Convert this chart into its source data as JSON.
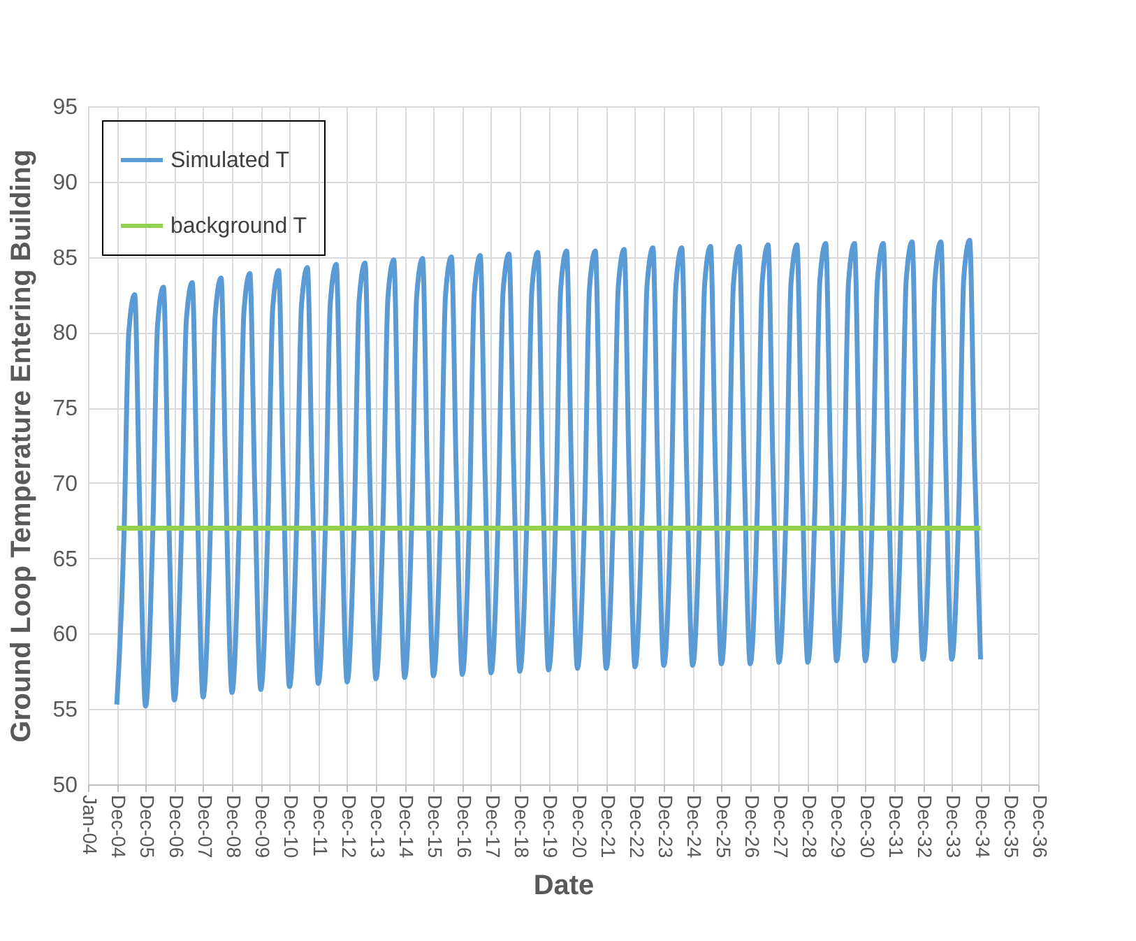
{
  "chart_data": {
    "type": "line",
    "xlabel": "Date",
    "ylabel": "Ground Loop Temperature Entering Building",
    "xlim": [
      "2004-01-01",
      "2036-12-31"
    ],
    "xticks": [
      {
        "value": "2004-01-01",
        "label": "Jan-04"
      },
      {
        "value": "2004-12-31",
        "label": "Dec-04"
      },
      {
        "value": "2005-12-31",
        "label": "Dec-05"
      },
      {
        "value": "2006-12-31",
        "label": "Dec-06"
      },
      {
        "value": "2007-12-31",
        "label": "Dec-07"
      },
      {
        "value": "2008-12-31",
        "label": "Dec-08"
      },
      {
        "value": "2009-12-31",
        "label": "Dec-09"
      },
      {
        "value": "2010-12-31",
        "label": "Dec-10"
      },
      {
        "value": "2011-12-31",
        "label": "Dec-11"
      },
      {
        "value": "2012-12-31",
        "label": "Dec-12"
      },
      {
        "value": "2013-12-31",
        "label": "Dec-13"
      },
      {
        "value": "2014-12-31",
        "label": "Dec-14"
      },
      {
        "value": "2015-12-31",
        "label": "Dec-15"
      },
      {
        "value": "2016-12-31",
        "label": "Dec-16"
      },
      {
        "value": "2017-12-31",
        "label": "Dec-17"
      },
      {
        "value": "2018-12-31",
        "label": "Dec-18"
      },
      {
        "value": "2019-12-31",
        "label": "Dec-19"
      },
      {
        "value": "2020-12-31",
        "label": "Dec-20"
      },
      {
        "value": "2021-12-31",
        "label": "Dec-21"
      },
      {
        "value": "2022-12-31",
        "label": "Dec-22"
      },
      {
        "value": "2023-12-31",
        "label": "Dec-23"
      },
      {
        "value": "2024-12-31",
        "label": "Dec-24"
      },
      {
        "value": "2025-12-31",
        "label": "Dec-25"
      },
      {
        "value": "2026-12-31",
        "label": "Dec-26"
      },
      {
        "value": "2027-12-31",
        "label": "Dec-27"
      },
      {
        "value": "2028-12-31",
        "label": "Dec-28"
      },
      {
        "value": "2029-12-31",
        "label": "Dec-29"
      },
      {
        "value": "2030-12-31",
        "label": "Dec-30"
      },
      {
        "value": "2031-12-31",
        "label": "Dec-31"
      },
      {
        "value": "2032-12-31",
        "label": "Dec-32"
      },
      {
        "value": "2033-12-31",
        "label": "Dec-33"
      },
      {
        "value": "2034-12-31",
        "label": "Dec-34"
      },
      {
        "value": "2035-12-31",
        "label": "Dec-35"
      },
      {
        "value": "2036-12-31",
        "label": "Dec-36"
      }
    ],
    "ylim": [
      50,
      95
    ],
    "yticks": [
      50,
      55,
      60,
      65,
      70,
      75,
      80,
      85,
      90,
      95
    ],
    "grid": true,
    "legend": "top left",
    "marker": "none",
    "line_style": "solid",
    "series": [
      {
        "name": "Simulated T",
        "color": "#5b9bd5",
        "x": [
          "2004-12-31",
          "2005-04-01",
          "2005-06-01",
          "2005-08-15",
          "2005-10-15",
          "2005-12-31",
          "2006-04-01",
          "2006-06-01",
          "2006-08-15",
          "2006-10-15",
          "2006-12-31",
          "2007-04-01",
          "2007-06-01",
          "2007-08-15",
          "2007-10-15",
          "2007-12-31",
          "2008-04-01",
          "2008-06-01",
          "2008-08-15",
          "2008-10-15",
          "2008-12-31",
          "2009-04-01",
          "2009-06-01",
          "2009-08-15",
          "2009-10-15",
          "2009-12-31",
          "2010-04-01",
          "2010-06-01",
          "2010-08-15",
          "2010-10-15",
          "2010-12-31",
          "2011-04-01",
          "2011-06-01",
          "2011-08-15",
          "2011-10-15",
          "2011-12-31",
          "2012-04-01",
          "2012-06-01",
          "2012-08-15",
          "2012-10-15",
          "2012-12-31",
          "2013-04-01",
          "2013-06-01",
          "2013-08-15",
          "2013-10-15",
          "2013-12-31",
          "2014-04-01",
          "2014-06-01",
          "2014-08-15",
          "2014-10-15",
          "2014-12-31",
          "2015-04-01",
          "2015-06-01",
          "2015-08-15",
          "2015-10-15",
          "2015-12-31",
          "2016-04-01",
          "2016-06-01",
          "2016-08-15",
          "2016-10-15",
          "2016-12-31",
          "2017-04-01",
          "2017-06-01",
          "2017-08-15",
          "2017-10-15",
          "2017-12-31",
          "2018-04-01",
          "2018-06-01",
          "2018-08-15",
          "2018-10-15",
          "2018-12-31",
          "2019-04-01",
          "2019-06-01",
          "2019-08-15",
          "2019-10-15",
          "2019-12-31",
          "2020-04-01",
          "2020-06-01",
          "2020-08-15",
          "2020-10-15",
          "2020-12-31",
          "2021-04-01",
          "2021-06-01",
          "2021-08-15",
          "2021-10-15",
          "2021-12-31",
          "2022-04-01",
          "2022-06-01",
          "2022-08-15",
          "2022-10-15",
          "2022-12-31",
          "2023-04-01",
          "2023-06-01",
          "2023-08-15",
          "2023-10-15",
          "2023-12-31",
          "2024-04-01",
          "2024-06-01",
          "2024-08-15",
          "2024-10-15",
          "2024-12-31",
          "2025-04-01",
          "2025-06-01",
          "2025-08-15",
          "2025-10-15",
          "2025-12-31",
          "2026-04-01",
          "2026-06-01",
          "2026-08-15",
          "2026-10-15",
          "2026-12-31",
          "2027-04-01",
          "2027-06-01",
          "2027-08-15",
          "2027-10-15",
          "2027-12-31",
          "2028-04-01",
          "2028-06-01",
          "2028-08-15",
          "2028-10-15",
          "2028-12-31",
          "2029-04-01",
          "2029-06-01",
          "2029-08-15",
          "2029-10-15",
          "2029-12-31",
          "2030-04-01",
          "2030-06-01",
          "2030-08-15",
          "2030-10-15",
          "2030-12-31",
          "2031-04-01",
          "2031-06-01",
          "2031-08-15",
          "2031-10-15",
          "2031-12-31",
          "2032-04-01",
          "2032-06-01",
          "2032-08-15",
          "2032-10-15",
          "2032-12-31",
          "2033-04-01",
          "2033-06-01",
          "2033-08-15",
          "2033-10-15",
          "2033-12-31",
          "2034-04-01",
          "2034-06-01",
          "2034-08-15",
          "2034-10-15",
          "2034-12-31"
        ],
        "values": [
          55.3,
          66.5,
          80.0,
          82.5,
          69.0,
          55.2,
          66.7,
          80.5,
          83.0,
          69.3,
          55.6,
          66.9,
          80.8,
          83.3,
          69.5,
          55.8,
          67.0,
          81.1,
          83.6,
          69.7,
          56.1,
          67.2,
          81.4,
          83.9,
          69.9,
          56.3,
          67.3,
          81.6,
          84.1,
          70.0,
          56.5,
          67.4,
          81.8,
          84.3,
          70.1,
          56.7,
          67.5,
          82.0,
          84.5,
          70.2,
          56.8,
          67.6,
          82.1,
          84.6,
          70.3,
          57.0,
          67.7,
          82.3,
          84.8,
          70.4,
          57.1,
          67.8,
          82.4,
          84.9,
          70.5,
          57.2,
          67.9,
          82.5,
          85.0,
          70.6,
          57.3,
          68.0,
          82.6,
          85.1,
          70.7,
          57.4,
          68.0,
          82.7,
          85.2,
          70.7,
          57.5,
          68.1,
          82.8,
          85.3,
          70.8,
          57.6,
          68.2,
          82.9,
          85.4,
          70.9,
          57.7,
          68.2,
          82.9,
          85.4,
          70.9,
          57.7,
          68.3,
          83.0,
          85.5,
          71.0,
          57.8,
          68.3,
          83.1,
          85.6,
          71.0,
          57.9,
          68.4,
          83.1,
          85.6,
          71.1,
          57.9,
          68.4,
          83.2,
          85.7,
          71.1,
          58.0,
          68.5,
          83.2,
          85.7,
          71.2,
          58.0,
          68.5,
          83.3,
          85.8,
          71.2,
          58.1,
          68.6,
          83.3,
          85.8,
          71.3,
          58.1,
          68.6,
          83.4,
          85.9,
          71.3,
          58.2,
          68.6,
          83.4,
          85.9,
          71.3,
          58.2,
          68.7,
          83.4,
          85.9,
          71.4,
          58.2,
          68.7,
          83.5,
          86.0,
          71.4,
          58.3,
          68.7,
          83.5,
          86.0,
          71.4,
          58.3,
          68.8,
          83.6,
          86.1,
          71.5,
          58.3
        ]
      },
      {
        "name": "background T",
        "color": "#92d050",
        "x": [
          "2004-12-31",
          "2034-12-31"
        ],
        "values": [
          67,
          67
        ]
      }
    ]
  }
}
